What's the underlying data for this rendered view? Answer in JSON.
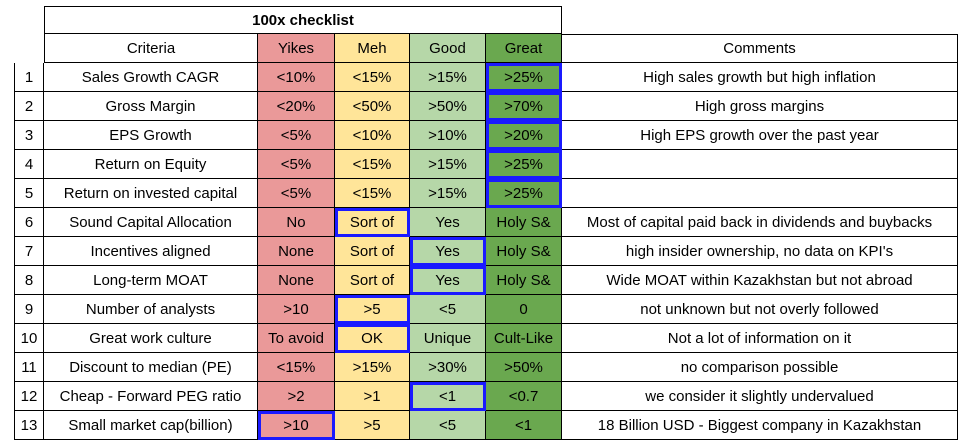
{
  "title": "100x checklist",
  "headers": {
    "criteria": "Criteria",
    "yikes": "Yikes",
    "meh": "Meh",
    "good": "Good",
    "great": "Great",
    "comments": "Comments"
  },
  "colors": {
    "yikes": "#ea9999",
    "meh": "#ffe599",
    "good": "#b6d7a8",
    "great": "#6aa84f",
    "highlight": "#1a1aff"
  },
  "rows": [
    {
      "num": "1",
      "criteria": "Sales Growth CAGR",
      "yikes": "<10%",
      "meh": "<15%",
      "good": ">15%",
      "great": ">25%",
      "comment": "High sales growth but high inflation",
      "selected": "great"
    },
    {
      "num": "2",
      "criteria": "Gross Margin",
      "yikes": "<20%",
      "meh": "<50%",
      "good": ">50%",
      "great": ">70%",
      "comment": "High gross margins",
      "selected": "great"
    },
    {
      "num": "3",
      "criteria": "EPS Growth",
      "yikes": "<5%",
      "meh": "<10%",
      "good": ">10%",
      "great": ">20%",
      "comment": "High EPS growth over the past year",
      "selected": "great"
    },
    {
      "num": "4",
      "criteria": "Return on Equity",
      "yikes": "<5%",
      "meh": "<15%",
      "good": ">15%",
      "great": ">25%",
      "comment": "",
      "selected": "great"
    },
    {
      "num": "5",
      "criteria": "Return on invested capital",
      "yikes": "<5%",
      "meh": "<15%",
      "good": ">15%",
      "great": ">25%",
      "comment": "",
      "selected": "great"
    },
    {
      "num": "6",
      "criteria": "Sound Capital Allocation",
      "yikes": "No",
      "meh": "Sort of",
      "good": "Yes",
      "great": "Holy S&",
      "comment": "Most of capital paid back in dividends and buybacks",
      "selected": "meh"
    },
    {
      "num": "7",
      "criteria": "Incentives aligned",
      "yikes": "None",
      "meh": "Sort of",
      "good": "Yes",
      "great": "Holy S&",
      "comment": "high insider ownership, no data on KPI's",
      "selected": "good"
    },
    {
      "num": "8",
      "criteria": "Long-term MOAT",
      "yikes": "None",
      "meh": "Sort of",
      "good": "Yes",
      "great": "Holy S&",
      "comment": "Wide MOAT within Kazakhstan but not abroad",
      "selected": "good"
    },
    {
      "num": "9",
      "criteria": "Number of analysts",
      "yikes": ">10",
      "meh": ">5",
      "good": "<5",
      "great": "0",
      "comment": "not unknown but not overly followed",
      "selected": "meh"
    },
    {
      "num": "10",
      "criteria": "Great work culture",
      "yikes": "To avoid",
      "meh": "OK",
      "good": "Unique",
      "great": "Cult-Like",
      "comment": "Not a lot of information on it",
      "selected": "meh"
    },
    {
      "num": "11",
      "criteria": "Discount to median (PE)",
      "yikes": "<15%",
      "meh": ">15%",
      "good": ">30%",
      "great": ">50%",
      "comment": "no comparison possible",
      "selected": ""
    },
    {
      "num": "12",
      "criteria": "Cheap - Forward PEG ratio",
      "yikes": ">2",
      "meh": ">1",
      "good": "<1",
      "great": "<0.7",
      "comment": "we consider it slightly undervalued",
      "selected": "good"
    },
    {
      "num": "13",
      "criteria": "Small market cap(billion)",
      "yikes": ">10",
      "meh": ">5",
      "good": "<5",
      "great": "<1",
      "comment": "18 Billion USD - Biggest company in Kazakhstan",
      "selected": "yikes"
    }
  ]
}
